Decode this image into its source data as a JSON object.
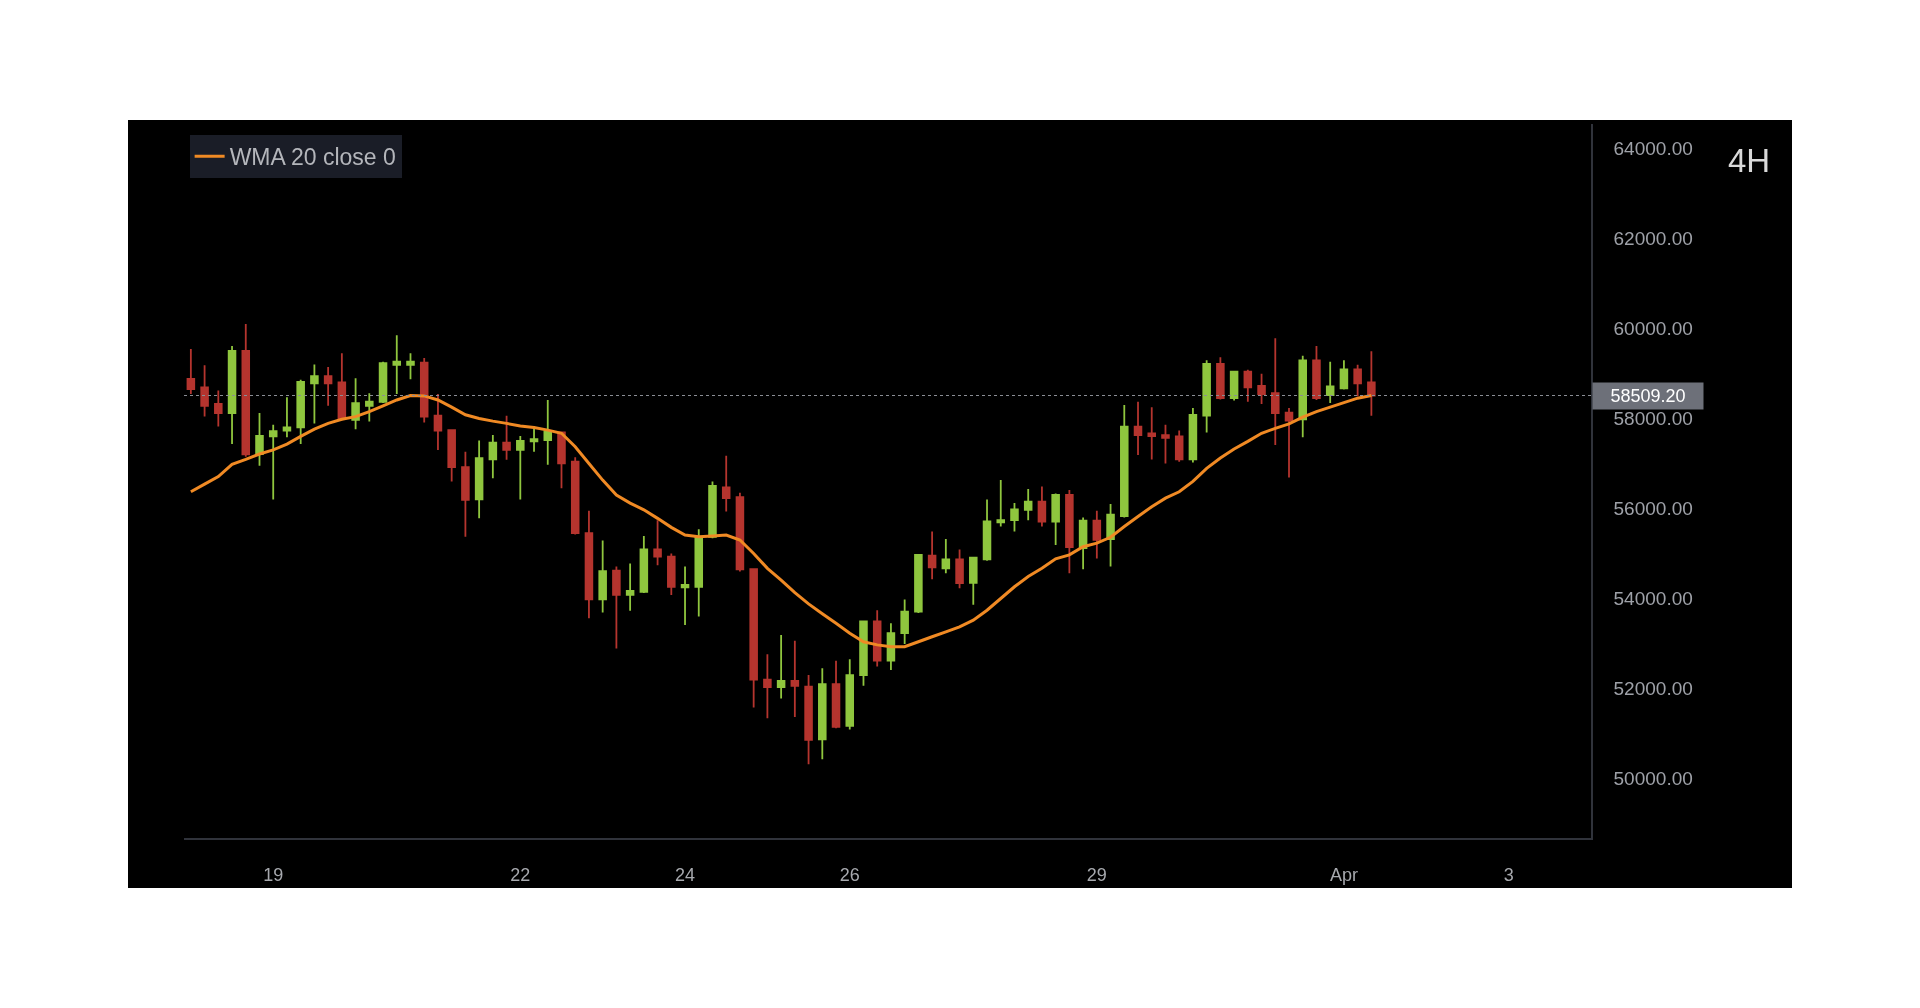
{
  "chart_data": {
    "type": "candlestick",
    "x": [
      "--03-18T00:00",
      "--03-18T04:00",
      "--03-18T08:00",
      "--03-18T12:00",
      "--03-18T16:00",
      "--03-18T20:00",
      "--03-19T00:00",
      "--03-19T04:00",
      "--03-19T08:00",
      "--03-19T12:00",
      "--03-19T16:00",
      "--03-19T20:00",
      "--03-20T00:00",
      "--03-20T04:00",
      "--03-20T08:00",
      "--03-20T12:00",
      "--03-20T16:00",
      "--03-20T20:00",
      "--03-21T00:00",
      "--03-21T04:00",
      "--03-21T08:00",
      "--03-21T12:00",
      "--03-21T16:00",
      "--03-21T20:00",
      "--03-22T00:00",
      "--03-22T04:00",
      "--03-22T08:00",
      "--03-22T12:00",
      "--03-22T16:00",
      "--03-22T20:00",
      "--03-23T00:00",
      "--03-23T04:00",
      "--03-23T08:00",
      "--03-23T12:00",
      "--03-23T16:00",
      "--03-23T20:00",
      "--03-24T00:00",
      "--03-24T04:00",
      "--03-24T08:00",
      "--03-24T12:00",
      "--03-24T16:00",
      "--03-24T20:00",
      "--03-25T00:00",
      "--03-25T04:00",
      "--03-25T08:00",
      "--03-25T12:00",
      "--03-25T16:00",
      "--03-25T20:00",
      "--03-26T00:00",
      "--03-26T04:00",
      "--03-26T08:00",
      "--03-26T12:00",
      "--03-26T16:00",
      "--03-26T20:00",
      "--03-27T00:00",
      "--03-27T04:00",
      "--03-27T08:00",
      "--03-27T12:00",
      "--03-27T16:00",
      "--03-27T20:00",
      "--03-28T00:00",
      "--03-28T04:00",
      "--03-28T08:00",
      "--03-28T12:00",
      "--03-28T16:00",
      "--03-28T20:00",
      "--03-29T00:00",
      "--03-29T04:00",
      "--03-29T08:00",
      "--03-29T12:00",
      "--03-29T16:00",
      "--03-29T20:00",
      "--03-30T00:00",
      "--03-30T04:00",
      "--03-30T08:00",
      "--03-30T12:00",
      "--03-30T16:00",
      "--03-30T20:00",
      "--03-31T00:00",
      "--03-31T04:00",
      "--03-31T08:00",
      "--03-31T12:00",
      "--03-31T16:00",
      "--03-31T20:00",
      "--04-01T00:00",
      "--04-01T04:00",
      "--04-01T08:00"
    ],
    "ohlc": [
      [
        58880,
        59540,
        58540,
        58650
      ],
      [
        58690,
        59180,
        58040,
        58280
      ],
      [
        58320,
        58620,
        57820,
        58120
      ],
      [
        58120,
        59610,
        57430,
        59500
      ],
      [
        59500,
        60100,
        57150,
        57200
      ],
      [
        57210,
        58120,
        56950,
        57610
      ],
      [
        57600,
        57860,
        56200,
        57720
      ],
      [
        57730,
        58470,
        57580,
        57800
      ],
      [
        57800,
        58860,
        57430,
        58810
      ],
      [
        58780,
        59200,
        57890,
        58940
      ],
      [
        58940,
        59140,
        58280,
        58780
      ],
      [
        58800,
        59450,
        57960,
        57990
      ],
      [
        57970,
        58890,
        57760,
        58340
      ],
      [
        58280,
        58560,
        57930,
        58370
      ],
      [
        58370,
        59260,
        58340,
        59230
      ],
      [
        59190,
        59850,
        58540,
        59260
      ],
      [
        59190,
        59450,
        58870,
        59260
      ],
      [
        59240,
        59340,
        57910,
        58040
      ],
      [
        58060,
        58540,
        57300,
        57730
      ],
      [
        57740,
        57760,
        56600,
        56920
      ],
      [
        56920,
        57260,
        55370,
        56190
      ],
      [
        56200,
        57510,
        55780,
        57120
      ],
      [
        57090,
        57630,
        56670,
        57460
      ],
      [
        57460,
        58060,
        57080,
        57300
      ],
      [
        57300,
        57610,
        56200,
        57500
      ],
      [
        57490,
        57830,
        57260,
        57540
      ],
      [
        57520,
        58410,
        56970,
        57710
      ],
      [
        57690,
        57710,
        56450,
        57000
      ],
      [
        57040,
        57140,
        55420,
        55450
      ],
      [
        55450,
        55950,
        53560,
        53980
      ],
      [
        53980,
        55290,
        53690,
        54610
      ],
      [
        54620,
        54710,
        52890,
        54080
      ],
      [
        54080,
        54780,
        53730,
        54170
      ],
      [
        54150,
        55390,
        54120,
        55090
      ],
      [
        55090,
        55740,
        54740,
        54930
      ],
      [
        54930,
        55000,
        54080,
        54260
      ],
      [
        54250,
        54710,
        53410,
        54300
      ],
      [
        54260,
        55540,
        53600,
        55370
      ],
      [
        55370,
        56600,
        55340,
        56500
      ],
      [
        56470,
        57170,
        55930,
        56230
      ],
      [
        56250,
        56350,
        54600,
        54650
      ],
      [
        54650,
        54670,
        51580,
        52200
      ],
      [
        52200,
        52760,
        51340,
        52030
      ],
      [
        52030,
        53190,
        51780,
        52170
      ],
      [
        52170,
        53060,
        51370,
        52060
      ],
      [
        52040,
        52300,
        50320,
        50860
      ],
      [
        50870,
        52450,
        50430,
        52100
      ],
      [
        52100,
        52620,
        51120,
        51150
      ],
      [
        51170,
        52650,
        51090,
        52300
      ],
      [
        52300,
        53510,
        52060,
        53490
      ],
      [
        53490,
        53740,
        52490,
        52620
      ],
      [
        52620,
        53450,
        52410,
        53230
      ],
      [
        53230,
        53980,
        52990,
        53710
      ],
      [
        53710,
        54990,
        53680,
        54970
      ],
      [
        54950,
        55490,
        54430,
        54690
      ],
      [
        54670,
        55320,
        54560,
        54870
      ],
      [
        54870,
        55090,
        54230,
        54340
      ],
      [
        54350,
        54930,
        53860,
        54910
      ],
      [
        54870,
        56200,
        54840,
        55710
      ],
      [
        55690,
        56630,
        55600,
        55740
      ],
      [
        55740,
        56120,
        55490,
        55980
      ],
      [
        55970,
        56430,
        55740,
        56150
      ],
      [
        56150,
        56490,
        55600,
        55710
      ],
      [
        55710,
        56330,
        55190,
        56300
      ],
      [
        56300,
        56410,
        54560,
        55140
      ],
      [
        55120,
        55800,
        54650,
        55730
      ],
      [
        55730,
        55950,
        54890,
        55300
      ],
      [
        55320,
        56100,
        54710,
        55860
      ],
      [
        55830,
        58300,
        55800,
        57820
      ],
      [
        57820,
        58370,
        57190,
        57630
      ],
      [
        57670,
        58250,
        57090,
        57610
      ],
      [
        57630,
        57860,
        57000,
        57570
      ],
      [
        57600,
        57730,
        57040,
        57090
      ],
      [
        57090,
        58230,
        57020,
        58080
      ],
      [
        58060,
        59290,
        57690,
        59210
      ],
      [
        59210,
        59360,
        58420,
        58450
      ],
      [
        58450,
        59060,
        58400,
        59040
      ],
      [
        59040,
        59080,
        58370,
        58690
      ],
      [
        58720,
        58990,
        58320,
        58540
      ],
      [
        58560,
        59780,
        57410,
        58120
      ],
      [
        58130,
        58230,
        56690,
        57950
      ],
      [
        57980,
        59390,
        57580,
        59290
      ],
      [
        59290,
        59610,
        58410,
        58450
      ],
      [
        58520,
        59260,
        58340,
        58710
      ],
      [
        58670,
        59290,
        58640,
        59090
      ],
      [
        59090,
        59190,
        58490,
        58780
      ],
      [
        58800,
        59490,
        58060,
        58509.2
      ]
    ],
    "colors": [
      "#b5342e",
      "#b5342e",
      "#b5342e",
      "#8fc63e",
      "#b5342e",
      "#8fc63e",
      "#8fc63e",
      "#8fc63e",
      "#8fc63e",
      "#8fc63e",
      "#b5342e",
      "#b5342e",
      "#8fc63e",
      "#8fc63e",
      "#8fc63e",
      "#8fc63e",
      "#8fc63e",
      "#b5342e",
      "#b5342e",
      "#b5342e",
      "#b5342e",
      "#8fc63e",
      "#8fc63e",
      "#b5342e",
      "#8fc63e",
      "#8fc63e",
      "#8fc63e",
      "#b5342e",
      "#b5342e",
      "#b5342e",
      "#8fc63e",
      "#b5342e",
      "#8fc63e",
      "#8fc63e",
      "#b5342e",
      "#b5342e",
      "#8fc63e",
      "#8fc63e",
      "#8fc63e",
      "#b5342e",
      "#b5342e",
      "#b5342e",
      "#b5342e",
      "#8fc63e",
      "#b5342e",
      "#b5342e",
      "#8fc63e",
      "#b5342e",
      "#8fc63e",
      "#8fc63e",
      "#b5342e",
      "#8fc63e",
      "#8fc63e",
      "#8fc63e",
      "#b5342e",
      "#8fc63e",
      "#b5342e",
      "#8fc63e",
      "#8fc63e",
      "#8fc63e",
      "#8fc63e",
      "#8fc63e",
      "#b5342e",
      "#8fc63e",
      "#b5342e",
      "#8fc63e",
      "#b5342e",
      "#8fc63e",
      "#8fc63e",
      "#b5342e",
      "#b5342e",
      "#b5342e",
      "#b5342e",
      "#8fc63e",
      "#8fc63e",
      "#b5342e",
      "#8fc63e",
      "#b5342e",
      "#b5342e",
      "#b5342e",
      "#b5342e",
      "#8fc63e",
      "#b5342e",
      "#8fc63e",
      "#8fc63e",
      "#b5342e",
      "#b5342e"
    ],
    "series": [
      {
        "type": "line",
        "name": "WMA 20 close 0",
        "color": "#f08a24",
        "values": [
          56370,
          56540,
          56710,
          56980,
          57090,
          57210,
          57300,
          57430,
          57600,
          57760,
          57890,
          57980,
          58040,
          58150,
          58280,
          58410,
          58510,
          58500,
          58410,
          58250,
          58080,
          58000,
          57940,
          57890,
          57830,
          57800,
          57740,
          57670,
          57370,
          57000,
          56630,
          56300,
          56120,
          55970,
          55780,
          55580,
          55410,
          55370,
          55390,
          55410,
          55300,
          55000,
          54670,
          54410,
          54130,
          53880,
          53660,
          53450,
          53230,
          53040,
          52970,
          52930,
          52930,
          53040,
          53150,
          53260,
          53370,
          53520,
          53740,
          54000,
          54260,
          54490,
          54670,
          54880,
          54970,
          55150,
          55230,
          55360,
          55600,
          55820,
          56040,
          56230,
          56370,
          56600,
          56890,
          57120,
          57320,
          57490,
          57670,
          57780,
          57880,
          58030,
          58150,
          58250,
          58350,
          58450,
          58510
        ]
      }
    ],
    "xlim": [
      "--03-17T22:00",
      "--04-04T00:00"
    ],
    "xticks": [
      {
        "value": "--03-19",
        "label": "19"
      },
      {
        "value": "--03-22",
        "label": "22"
      },
      {
        "value": "--03-24",
        "label": "24"
      },
      {
        "value": "--03-26",
        "label": "26"
      },
      {
        "value": "--03-29",
        "label": "29"
      },
      {
        "value": "--04-01",
        "label": "Apr"
      },
      {
        "value": "--04-03",
        "label": "3"
      }
    ],
    "ylim": [
      48680,
      64540
    ],
    "yticks": [
      {
        "value": 50000,
        "label": "50000.00"
      },
      {
        "value": 52000,
        "label": "52000.00"
      },
      {
        "value": 54000,
        "label": "54000.00"
      },
      {
        "value": 56000,
        "label": "56000.00"
      },
      {
        "value": 58000,
        "label": "58000.00"
      },
      {
        "value": 60000,
        "label": "60000.00"
      },
      {
        "value": 62000,
        "label": "62000.00"
      },
      {
        "value": 64000,
        "label": "64000.00"
      }
    ],
    "ref_lines": [
      {
        "axis": "y",
        "value": 58509.2,
        "label": "58509.20",
        "color": "#8a8d94",
        "line_style": "dotted"
      }
    ],
    "annotations": [
      "4H"
    ],
    "legend": "top left",
    "line_style": "solid"
  }
}
